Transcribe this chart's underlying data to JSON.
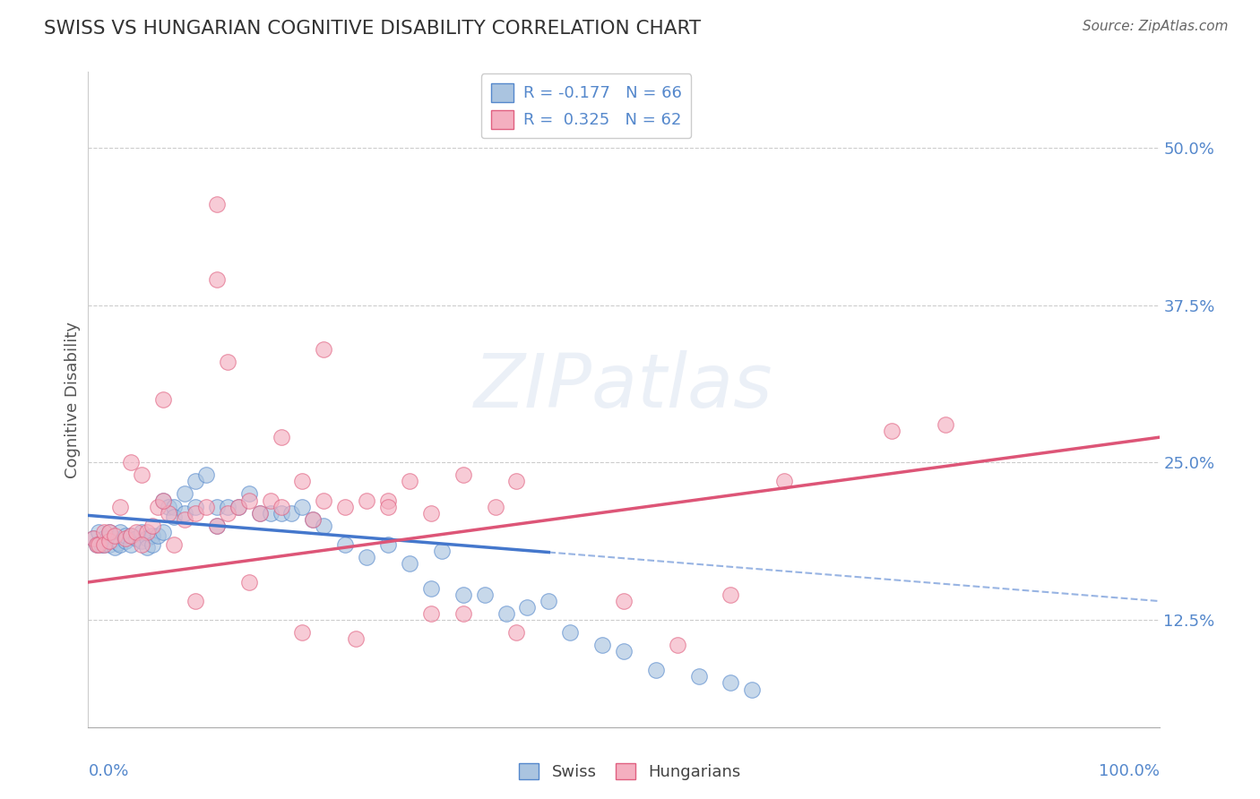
{
  "title": "SWISS VS HUNGARIAN COGNITIVE DISABILITY CORRELATION CHART",
  "source": "Source: ZipAtlas.com",
  "ylabel": "Cognitive Disability",
  "yticks": [
    0.125,
    0.25,
    0.375,
    0.5
  ],
  "ytick_labels": [
    "12.5%",
    "25.0%",
    "37.5%",
    "50.0%"
  ],
  "xlim": [
    0.0,
    1.0
  ],
  "ylim": [
    0.04,
    0.56
  ],
  "legend_line1": "R = -0.177   N = 66",
  "legend_line2": "R =  0.325   N = 62",
  "watermark_text": "ZIPatlas",
  "swiss_color": "#aac4e0",
  "hungarian_color": "#f4afc0",
  "swiss_edge_color": "#5588cc",
  "hungarian_edge_color": "#e06080",
  "swiss_trend_color": "#4477cc",
  "hungarian_trend_color": "#dd5577",
  "swiss_trend_solid_end": 0.43,
  "background_color": "#ffffff",
  "grid_color": "#cccccc",
  "title_color": "#333333",
  "axis_label_color": "#5588cc",
  "swiss_x": [
    0.005,
    0.008,
    0.01,
    0.012,
    0.015,
    0.015,
    0.018,
    0.02,
    0.02,
    0.025,
    0.025,
    0.028,
    0.03,
    0.03,
    0.035,
    0.035,
    0.04,
    0.04,
    0.045,
    0.05,
    0.05,
    0.055,
    0.055,
    0.06,
    0.06,
    0.065,
    0.07,
    0.07,
    0.075,
    0.08,
    0.08,
    0.09,
    0.09,
    0.1,
    0.1,
    0.11,
    0.12,
    0.12,
    0.13,
    0.14,
    0.15,
    0.16,
    0.17,
    0.18,
    0.19,
    0.2,
    0.21,
    0.22,
    0.24,
    0.26,
    0.28,
    0.3,
    0.32,
    0.33,
    0.35,
    0.37,
    0.39,
    0.41,
    0.43,
    0.45,
    0.48,
    0.5,
    0.53,
    0.57,
    0.6,
    0.62
  ],
  "swiss_y": [
    0.19,
    0.185,
    0.195,
    0.185,
    0.19,
    0.185,
    0.19,
    0.185,
    0.195,
    0.19,
    0.183,
    0.186,
    0.185,
    0.195,
    0.188,
    0.192,
    0.185,
    0.192,
    0.19,
    0.188,
    0.195,
    0.19,
    0.183,
    0.192,
    0.185,
    0.192,
    0.22,
    0.195,
    0.215,
    0.215,
    0.207,
    0.225,
    0.21,
    0.235,
    0.215,
    0.24,
    0.215,
    0.2,
    0.215,
    0.215,
    0.225,
    0.21,
    0.21,
    0.21,
    0.21,
    0.215,
    0.205,
    0.2,
    0.185,
    0.175,
    0.185,
    0.17,
    0.15,
    0.18,
    0.145,
    0.145,
    0.13,
    0.135,
    0.14,
    0.115,
    0.105,
    0.1,
    0.085,
    0.08,
    0.075,
    0.07
  ],
  "hungarian_x": [
    0.005,
    0.008,
    0.01,
    0.015,
    0.015,
    0.02,
    0.02,
    0.025,
    0.03,
    0.035,
    0.04,
    0.04,
    0.045,
    0.05,
    0.055,
    0.06,
    0.065,
    0.07,
    0.075,
    0.08,
    0.09,
    0.1,
    0.11,
    0.12,
    0.13,
    0.14,
    0.15,
    0.16,
    0.17,
    0.18,
    0.2,
    0.21,
    0.22,
    0.24,
    0.26,
    0.28,
    0.3,
    0.32,
    0.35,
    0.38,
    0.4,
    0.12,
    0.13,
    0.18,
    0.22,
    0.28,
    0.35,
    0.4,
    0.5,
    0.55,
    0.6,
    0.65,
    0.75,
    0.8,
    0.1,
    0.15,
    0.2,
    0.25,
    0.32,
    0.12,
    0.05,
    0.07
  ],
  "hungarian_y": [
    0.19,
    0.185,
    0.185,
    0.195,
    0.185,
    0.188,
    0.195,
    0.192,
    0.215,
    0.19,
    0.192,
    0.25,
    0.195,
    0.24,
    0.195,
    0.2,
    0.215,
    0.3,
    0.21,
    0.185,
    0.205,
    0.21,
    0.215,
    0.2,
    0.21,
    0.215,
    0.22,
    0.21,
    0.22,
    0.215,
    0.235,
    0.205,
    0.22,
    0.215,
    0.22,
    0.22,
    0.235,
    0.21,
    0.24,
    0.215,
    0.235,
    0.395,
    0.33,
    0.27,
    0.34,
    0.215,
    0.13,
    0.115,
    0.14,
    0.105,
    0.145,
    0.235,
    0.275,
    0.28,
    0.14,
    0.155,
    0.115,
    0.11,
    0.13,
    0.455,
    0.185,
    0.22
  ]
}
